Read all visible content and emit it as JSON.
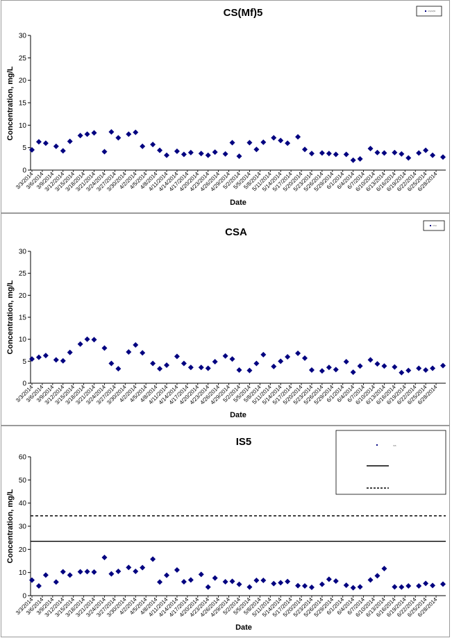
{
  "colors": {
    "marker": "#000080",
    "axis": "#000000",
    "border": "#9a9a9a"
  },
  "chart_data": [
    {
      "type": "scatter",
      "title": "CS(Mf)5",
      "xlabel": "Date",
      "ylabel": "Concentration, mg/L",
      "ylim": [
        0,
        30
      ],
      "yticks": [
        0,
        5,
        10,
        15,
        20,
        25,
        30
      ],
      "legend": {
        "placement": "top-right",
        "entries": [
          "CS(Mf)5"
        ]
      },
      "xtick_labels": [
        "3/3/2014",
        "3/6/2014",
        "3/9/2014",
        "3/12/2014",
        "3/15/2014",
        "3/18/2014",
        "3/21/2014",
        "3/24/2014",
        "3/27/2014",
        "3/30/2014",
        "4/2/2014",
        "4/5/2014",
        "4/8/2014",
        "4/11/2014",
        "4/14/2014",
        "4/17/2014",
        "4/20/2014",
        "4/23/2014",
        "4/26/2014",
        "4/29/2014",
        "5/2/2014",
        "5/5/2014",
        "5/8/2014",
        "5/11/2014",
        "5/14/2014",
        "5/17/2014",
        "5/20/2014",
        "5/23/2014",
        "5/26/2014",
        "5/29/2014",
        "6/1/2014",
        "6/4/2014",
        "6/7/2014",
        "6/10/2014",
        "6/13/2014",
        "6/16/2014",
        "6/19/2014",
        "6/22/2014",
        "6/25/2014",
        "6/28/2014"
      ],
      "xlim": [
        "3/3/2014",
        "6/30/2014"
      ],
      "points": [
        [
          "3/3/2014",
          4.5
        ],
        [
          "3/5/2014",
          6.3
        ],
        [
          "3/7/2014",
          6.0
        ],
        [
          "3/10/2014",
          5.3
        ],
        [
          "3/12/2014",
          4.3
        ],
        [
          "3/14/2014",
          6.4
        ],
        [
          "3/17/2014",
          7.7
        ],
        [
          "3/19/2014",
          8.0
        ],
        [
          "3/21/2014",
          8.3
        ],
        [
          "3/24/2014",
          4.1
        ],
        [
          "3/26/2014",
          8.5
        ],
        [
          "3/28/2014",
          7.2
        ],
        [
          "3/31/2014",
          8.0
        ],
        [
          "4/2/2014",
          8.4
        ],
        [
          "4/4/2014",
          5.3
        ],
        [
          "4/7/2014",
          5.7
        ],
        [
          "4/9/2014",
          4.4
        ],
        [
          "4/11/2014",
          3.3
        ],
        [
          "4/14/2014",
          4.2
        ],
        [
          "4/16/2014",
          3.5
        ],
        [
          "4/18/2014",
          3.9
        ],
        [
          "4/21/2014",
          3.7
        ],
        [
          "4/23/2014",
          3.3
        ],
        [
          "4/25/2014",
          4.0
        ],
        [
          "4/28/2014",
          3.6
        ],
        [
          "4/30/2014",
          6.1
        ],
        [
          "5/2/2014",
          3.1
        ],
        [
          "5/5/2014",
          6.1
        ],
        [
          "5/7/2014",
          4.6
        ],
        [
          "5/9/2014",
          6.2
        ],
        [
          "5/12/2014",
          7.2
        ],
        [
          "5/14/2014",
          6.6
        ],
        [
          "5/16/2014",
          6.0
        ],
        [
          "5/19/2014",
          7.4
        ],
        [
          "5/21/2014",
          4.6
        ],
        [
          "5/23/2014",
          3.7
        ],
        [
          "5/26/2014",
          3.8
        ],
        [
          "5/28/2014",
          3.7
        ],
        [
          "5/30/2014",
          3.5
        ],
        [
          "6/2/2014",
          3.5
        ],
        [
          "6/4/2014",
          2.2
        ],
        [
          "6/6/2014",
          2.5
        ],
        [
          "6/9/2014",
          4.8
        ],
        [
          "6/11/2014",
          3.9
        ],
        [
          "6/13/2014",
          3.8
        ],
        [
          "6/16/2014",
          3.9
        ],
        [
          "6/18/2014",
          3.6
        ],
        [
          "6/20/2014",
          2.7
        ],
        [
          "6/23/2014",
          3.8
        ],
        [
          "6/25/2014",
          4.4
        ],
        [
          "6/27/2014",
          3.3
        ],
        [
          "6/30/2014",
          2.9
        ]
      ]
    },
    {
      "type": "scatter",
      "title": "CSA",
      "xlabel": "Date",
      "ylabel": "Concentration, mg/L",
      "ylim": [
        0,
        30
      ],
      "yticks": [
        0,
        5,
        10,
        15,
        20,
        25,
        30
      ],
      "legend": {
        "placement": "top-right",
        "entries": [
          "CSA"
        ]
      },
      "xtick_labels": [
        "3/3/2014",
        "3/6/2014",
        "3/9/2014",
        "3/12/2014",
        "3/15/2014",
        "3/18/2014",
        "3/21/2014",
        "3/24/2014",
        "3/27/2014",
        "3/30/2014",
        "4/2/2014",
        "4/5/2014",
        "4/8/2014",
        "4/11/2014",
        "4/14/2014",
        "4/17/2014",
        "4/20/2014",
        "4/23/2014",
        "4/26/2014",
        "4/29/2014",
        "5/2/2014",
        "5/5/2014",
        "5/8/2014",
        "5/11/2014",
        "5/14/2014",
        "5/17/2014",
        "5/20/2014",
        "5/23/2014",
        "5/26/2014",
        "5/29/2014",
        "6/1/2014",
        "6/4/2014",
        "6/7/2014",
        "6/10/2014",
        "6/13/2014",
        "6/16/2014",
        "6/19/2014",
        "6/22/2014",
        "6/25/2014",
        "6/28/2014"
      ],
      "xlim": [
        "3/3/2014",
        "6/30/2014"
      ],
      "points": [
        [
          "3/3/2014",
          5.5
        ],
        [
          "3/5/2014",
          5.9
        ],
        [
          "3/7/2014",
          6.3
        ],
        [
          "3/10/2014",
          5.3
        ],
        [
          "3/12/2014",
          5.1
        ],
        [
          "3/14/2014",
          7.0
        ],
        [
          "3/17/2014",
          8.9
        ],
        [
          "3/19/2014",
          10.0
        ],
        [
          "3/21/2014",
          9.9
        ],
        [
          "3/24/2014",
          8.0
        ],
        [
          "3/26/2014",
          4.5
        ],
        [
          "3/28/2014",
          3.3
        ],
        [
          "3/31/2014",
          7.1
        ],
        [
          "4/2/2014",
          8.7
        ],
        [
          "4/4/2014",
          6.9
        ],
        [
          "4/7/2014",
          4.5
        ],
        [
          "4/9/2014",
          3.3
        ],
        [
          "4/11/2014",
          4.1
        ],
        [
          "4/14/2014",
          6.1
        ],
        [
          "4/16/2014",
          4.5
        ],
        [
          "4/18/2014",
          3.6
        ],
        [
          "4/21/2014",
          3.6
        ],
        [
          "4/23/2014",
          3.4
        ],
        [
          "4/25/2014",
          4.9
        ],
        [
          "4/28/2014",
          6.2
        ],
        [
          "4/30/2014",
          5.5
        ],
        [
          "5/2/2014",
          3.0
        ],
        [
          "5/5/2014",
          2.9
        ],
        [
          "5/7/2014",
          4.5
        ],
        [
          "5/9/2014",
          6.5
        ],
        [
          "5/12/2014",
          3.8
        ],
        [
          "5/14/2014",
          5.0
        ],
        [
          "5/16/2014",
          6.0
        ],
        [
          "5/19/2014",
          6.8
        ],
        [
          "5/21/2014",
          5.7
        ],
        [
          "5/23/2014",
          3.0
        ],
        [
          "5/26/2014",
          2.8
        ],
        [
          "5/28/2014",
          3.6
        ],
        [
          "5/30/2014",
          3.1
        ],
        [
          "6/2/2014",
          4.9
        ],
        [
          "6/4/2014",
          2.5
        ],
        [
          "6/6/2014",
          3.9
        ],
        [
          "6/9/2014",
          5.3
        ],
        [
          "6/11/2014",
          4.4
        ],
        [
          "6/13/2014",
          3.9
        ],
        [
          "6/16/2014",
          3.7
        ],
        [
          "6/18/2014",
          2.4
        ],
        [
          "6/20/2014",
          2.9
        ],
        [
          "6/23/2014",
          3.4
        ],
        [
          "6/25/2014",
          3.0
        ],
        [
          "6/27/2014",
          3.4
        ],
        [
          "6/30/2014",
          4.0
        ]
      ]
    },
    {
      "type": "scatter",
      "title": "IS5",
      "xlabel": "Date",
      "ylabel": "Concentration, mg/L",
      "ylim": [
        0,
        60
      ],
      "yticks": [
        0,
        10,
        20,
        30,
        40,
        50,
        60
      ],
      "legend": {
        "placement": "top-right",
        "entries": [
          "IS5",
          "",
          ""
        ]
      },
      "reference_lines": [
        {
          "y": 23.5,
          "style": "solid"
        },
        {
          "y": 34.5,
          "style": "dashed"
        }
      ],
      "xtick_labels": [
        "3/3/2014",
        "3/6/2014",
        "3/9/2014",
        "3/12/2014",
        "3/15/2014",
        "3/18/2014",
        "3/21/2014",
        "3/24/2014",
        "3/27/2014",
        "3/30/2014",
        "4/2/2014",
        "4/5/2014",
        "4/8/2014",
        "4/11/2014",
        "4/14/2014",
        "4/17/2014",
        "4/20/2014",
        "4/23/2014",
        "4/26/2014",
        "4/29/2014",
        "5/2/2014",
        "5/5/2014",
        "5/8/2014",
        "5/11/2014",
        "5/14/2014",
        "5/17/2014",
        "5/20/2014",
        "5/23/2014",
        "5/26/2014",
        "5/29/2014",
        "6/1/2014",
        "6/4/2014",
        "6/7/2014",
        "6/10/2014",
        "6/13/2014",
        "6/16/2014",
        "6/19/2014",
        "6/22/2014",
        "6/25/2014",
        "6/28/2014"
      ],
      "xlim": [
        "3/3/2014",
        "6/30/2014"
      ],
      "points": [
        [
          "3/3/2014",
          6.7
        ],
        [
          "3/5/2014",
          4.2
        ],
        [
          "3/7/2014",
          8.9
        ],
        [
          "3/10/2014",
          5.9
        ],
        [
          "3/12/2014",
          10.3
        ],
        [
          "3/14/2014",
          8.9
        ],
        [
          "3/17/2014",
          10.3
        ],
        [
          "3/19/2014",
          10.4
        ],
        [
          "3/21/2014",
          10.2
        ],
        [
          "3/24/2014",
          16.5
        ],
        [
          "3/26/2014",
          9.4
        ],
        [
          "3/28/2014",
          10.5
        ],
        [
          "3/31/2014",
          12.2
        ],
        [
          "4/2/2014",
          10.5
        ],
        [
          "4/4/2014",
          12.1
        ],
        [
          "4/7/2014",
          15.8
        ],
        [
          "4/9/2014",
          5.9
        ],
        [
          "4/11/2014",
          8.8
        ],
        [
          "4/14/2014",
          11.1
        ],
        [
          "4/16/2014",
          6.0
        ],
        [
          "4/18/2014",
          6.8
        ],
        [
          "4/21/2014",
          9.2
        ],
        [
          "4/23/2014",
          3.7
        ],
        [
          "4/25/2014",
          7.6
        ],
        [
          "4/28/2014",
          6.0
        ],
        [
          "4/30/2014",
          6.2
        ],
        [
          "5/2/2014",
          4.9
        ],
        [
          "5/5/2014",
          3.7
        ],
        [
          "5/7/2014",
          6.6
        ],
        [
          "5/9/2014",
          6.6
        ],
        [
          "5/12/2014",
          5.2
        ],
        [
          "5/14/2014",
          5.6
        ],
        [
          "5/16/2014",
          6.1
        ],
        [
          "5/19/2014",
          4.3
        ],
        [
          "5/21/2014",
          4.2
        ],
        [
          "5/23/2014",
          3.6
        ],
        [
          "5/26/2014",
          4.9
        ],
        [
          "5/28/2014",
          7.1
        ],
        [
          "5/30/2014",
          6.3
        ],
        [
          "6/2/2014",
          4.5
        ],
        [
          "6/4/2014",
          3.4
        ],
        [
          "6/6/2014",
          3.8
        ],
        [
          "6/9/2014",
          6.8
        ],
        [
          "6/11/2014",
          8.6
        ],
        [
          "6/13/2014",
          11.7
        ],
        [
          "6/16/2014",
          3.8
        ],
        [
          "6/18/2014",
          3.7
        ],
        [
          "6/20/2014",
          4.2
        ],
        [
          "6/23/2014",
          4.2
        ],
        [
          "6/25/2014",
          5.3
        ],
        [
          "6/27/2014",
          4.4
        ],
        [
          "6/30/2014",
          5.0
        ]
      ]
    }
  ]
}
